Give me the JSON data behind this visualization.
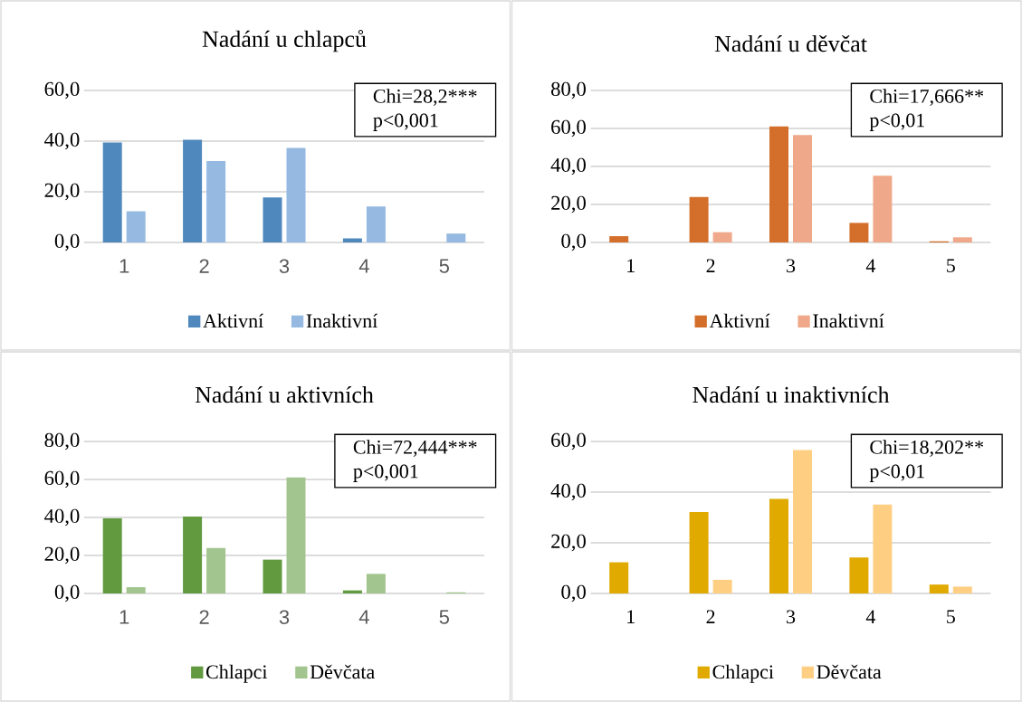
{
  "chart_data": [
    {
      "type": "bar",
      "title": "Nadání u chlapců",
      "categories": [
        "1",
        "2",
        "3",
        "4",
        "5"
      ],
      "series": [
        {
          "name": "Aktivní",
          "color": "#4f88bd",
          "values": [
            39.5,
            40.5,
            17.8,
            1.6,
            0
          ]
        },
        {
          "name": "Inaktivní",
          "color": "#95b9e0",
          "values": [
            12.3,
            32.1,
            37.3,
            14.2,
            3.5
          ]
        }
      ],
      "ylim": [
        0,
        60
      ],
      "yticks": [
        {
          "value": 0,
          "label": "0,0"
        },
        {
          "value": 20,
          "label": "20,0"
        },
        {
          "value": 40,
          "label": "40,0"
        },
        {
          "value": 60,
          "label": "60,0"
        }
      ],
      "grid": "y",
      "legend": "bottom",
      "annotations": [
        "Chi=28,2***",
        "p<0,001"
      ]
    },
    {
      "type": "bar",
      "title": "Nadání u děvčat",
      "categories": [
        "1",
        "2",
        "3",
        "4",
        "5"
      ],
      "series": [
        {
          "name": "Aktivní",
          "color": "#d36f2b",
          "values": [
            3.3,
            23.9,
            61.1,
            10.3,
            0.6
          ]
        },
        {
          "name": "Inaktivní",
          "color": "#f0a88a",
          "values": [
            0,
            5.4,
            56.6,
            35.1,
            2.7
          ]
        }
      ],
      "ylim": [
        0,
        80
      ],
      "yticks": [
        {
          "value": 0,
          "label": "0,0"
        },
        {
          "value": 20,
          "label": "20,0"
        },
        {
          "value": 40,
          "label": "40,0"
        },
        {
          "value": 60,
          "label": "60,0"
        },
        {
          "value": 80,
          "label": "80,0"
        }
      ],
      "grid": "y",
      "legend": "bottom",
      "annotations": [
        "Chi=17,666**",
        "p<0,01"
      ]
    },
    {
      "type": "bar",
      "title": "Nadání u aktivních",
      "categories": [
        "1",
        "2",
        "3",
        "4",
        "5"
      ],
      "series": [
        {
          "name": "Chlapci",
          "color": "#629a3f",
          "values": [
            39.5,
            40.5,
            17.8,
            1.6,
            0
          ]
        },
        {
          "name": "Děvčata",
          "color": "#a2c58f",
          "values": [
            3.3,
            23.9,
            61.1,
            10.3,
            0.6
          ]
        }
      ],
      "ylim": [
        0,
        80
      ],
      "yticks": [
        {
          "value": 0,
          "label": "0,0"
        },
        {
          "value": 20,
          "label": "20,0"
        },
        {
          "value": 40,
          "label": "40,0"
        },
        {
          "value": 60,
          "label": "60,0"
        },
        {
          "value": 80,
          "label": "80,0"
        }
      ],
      "grid": "y",
      "legend": "bottom",
      "annotations": [
        "Chi=72,444***",
        "p<0,001"
      ]
    },
    {
      "type": "bar",
      "title": "Nadání u inaktivních",
      "categories": [
        "1",
        "2",
        "3",
        "4",
        "5"
      ],
      "series": [
        {
          "name": "Chlapci",
          "color": "#e0aa00",
          "values": [
            12.3,
            32.1,
            37.3,
            14.2,
            3.5
          ]
        },
        {
          "name": "Děvčata",
          "color": "#fecf83",
          "values": [
            0,
            5.4,
            56.6,
            35.1,
            2.7
          ]
        }
      ],
      "ylim": [
        0,
        60
      ],
      "yticks": [
        {
          "value": 0,
          "label": "0,0"
        },
        {
          "value": 20,
          "label": "20,0"
        },
        {
          "value": 40,
          "label": "40,0"
        },
        {
          "value": 60,
          "label": "60,0"
        }
      ],
      "grid": "y",
      "legend": "bottom",
      "annotations": [
        "Chi=18,202**",
        "p<0,01"
      ]
    }
  ]
}
